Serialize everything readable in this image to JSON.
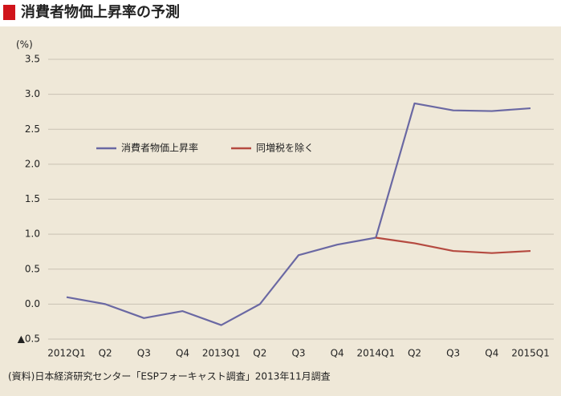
{
  "chart_data": {
    "type": "line",
    "title": "消費者物価上昇率の予測",
    "y_label": "(%)",
    "source": "(資料)日本経済研究センター「ESPフォーキャスト調査」2013年11月調査",
    "categories": [
      "2012Q1",
      "Q2",
      "Q3",
      "Q4",
      "2013Q1",
      "Q2",
      "Q3",
      "Q4",
      "2014Q1",
      "Q2",
      "Q3",
      "Q4",
      "2015Q1"
    ],
    "series": [
      {
        "name": "消費者物価上昇率",
        "color": "#6a68a3",
        "values": [
          0.1,
          0.0,
          -0.2,
          -0.1,
          -0.3,
          0.0,
          0.7,
          0.85,
          0.95,
          2.87,
          2.77,
          2.76,
          2.8
        ]
      },
      {
        "name": "同増税を除く",
        "color": "#b54a40",
        "values": [
          null,
          null,
          null,
          null,
          null,
          null,
          null,
          null,
          0.95,
          0.87,
          0.76,
          0.73,
          0.76
        ]
      }
    ],
    "ylim": [
      -0.5,
      3.5
    ],
    "yticks": [
      {
        "value": -0.5,
        "label": "▲0.5"
      },
      {
        "value": 0,
        "label": "0.0"
      },
      0.5,
      {
        "value": 1,
        "label": "1.0"
      },
      1.5,
      {
        "value": 2,
        "label": "2.0"
      },
      2.5,
      {
        "value": 3,
        "label": "3.0"
      },
      3.5
    ],
    "grid": true
  }
}
